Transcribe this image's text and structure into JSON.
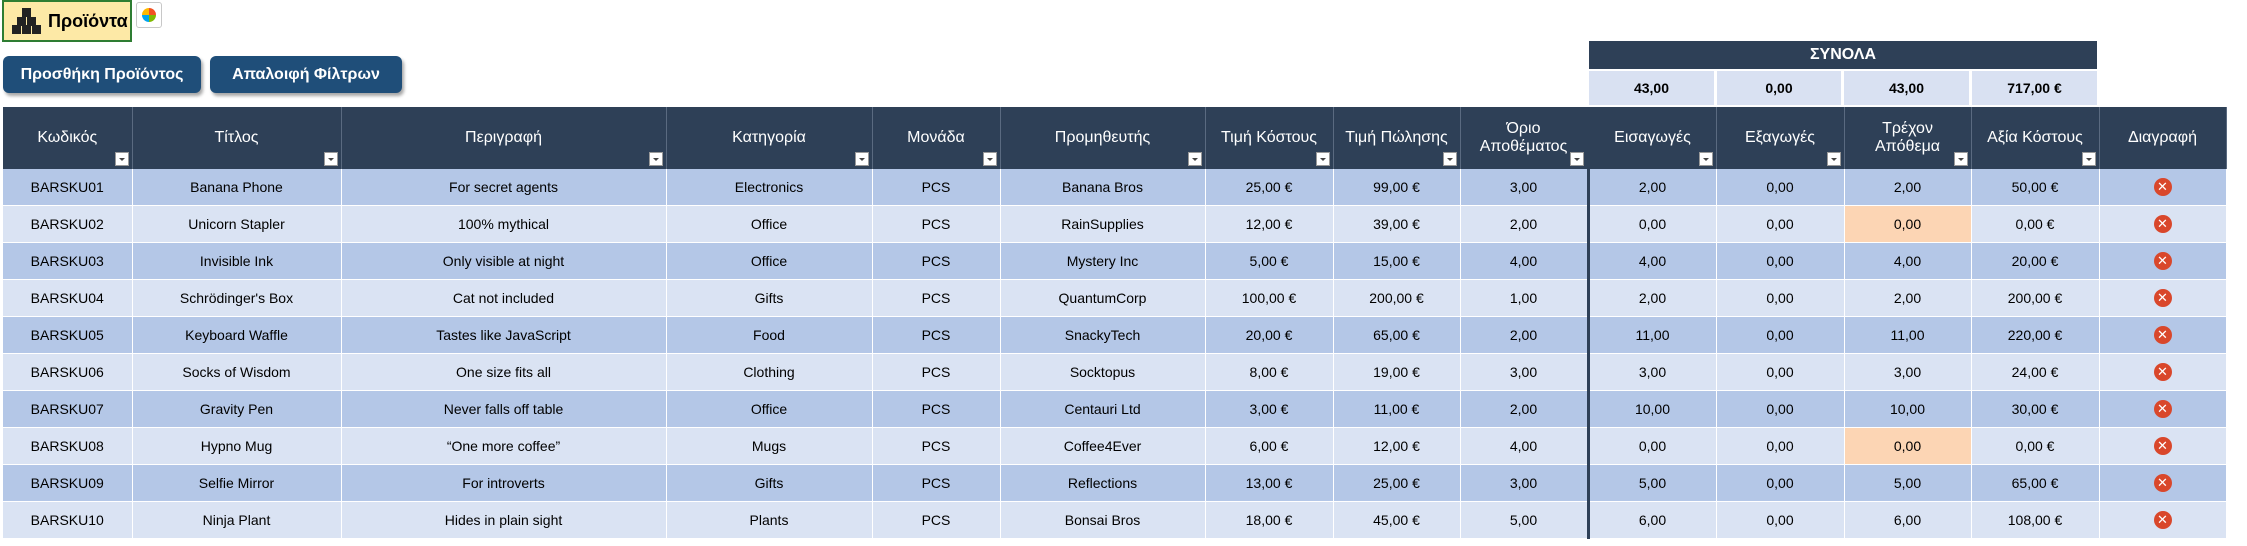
{
  "sheet_tab": {
    "label": "Προϊόντα",
    "icon": "boxes-icon"
  },
  "buttons": {
    "add": "Προσθήκη Προϊόντος",
    "clear": "Απαλοιφή Φίλτρων"
  },
  "totals": {
    "title": "ΣΥΝΟΛΑ",
    "imports": "43,00",
    "exports": "0,00",
    "stock": "43,00",
    "cost_value": "717,00 €"
  },
  "columns": [
    "Κωδικός",
    "Τίτλος",
    "Περιγραφή",
    "Κατηγορία",
    "Μονάδα",
    "Προμηθευτής",
    "Τιμή Κόστους",
    "Τιμή Πώλησης",
    "Όριο Αποθέματος",
    "Εισαγωγές",
    "Εξαγωγές",
    "Τρέχον Απόθεμα",
    "Αξία Κόστους",
    "Διαγραφή"
  ],
  "rows": [
    [
      "BARSKU01",
      "Banana Phone",
      "For secret agents",
      "Electronics",
      "PCS",
      "Banana Bros",
      "25,00 €",
      "99,00 €",
      "3,00",
      "2,00",
      "0,00",
      "2,00",
      "50,00 €"
    ],
    [
      "BARSKU02",
      "Unicorn Stapler",
      "100% mythical",
      "Office",
      "PCS",
      "RainSupplies",
      "12,00 €",
      "39,00 €",
      "2,00",
      "0,00",
      "0,00",
      "0,00",
      "0,00 €"
    ],
    [
      "BARSKU03",
      "Invisible Ink",
      "Only visible at night",
      "Office",
      "PCS",
      "Mystery Inc",
      "5,00 €",
      "15,00 €",
      "4,00",
      "4,00",
      "0,00",
      "4,00",
      "20,00 €"
    ],
    [
      "BARSKU04",
      "Schrödinger's Box",
      "Cat not included",
      "Gifts",
      "PCS",
      "QuantumCorp",
      "100,00 €",
      "200,00 €",
      "1,00",
      "2,00",
      "0,00",
      "2,00",
      "200,00 €"
    ],
    [
      "BARSKU05",
      "Keyboard Waffle",
      "Tastes like JavaScript",
      "Food",
      "PCS",
      "SnackyTech",
      "20,00 €",
      "65,00 €",
      "2,00",
      "11,00",
      "0,00",
      "11,00",
      "220,00 €"
    ],
    [
      "BARSKU06",
      "Socks of Wisdom",
      "One size fits all",
      "Clothing",
      "PCS",
      "Socktopus",
      "8,00 €",
      "19,00 €",
      "3,00",
      "3,00",
      "0,00",
      "3,00",
      "24,00 €"
    ],
    [
      "BARSKU07",
      "Gravity Pen",
      "Never falls off table",
      "Office",
      "PCS",
      "Centauri Ltd",
      "3,00 €",
      "11,00 €",
      "2,00",
      "10,00",
      "0,00",
      "10,00",
      "30,00 €"
    ],
    [
      "BARSKU08",
      "Hypno Mug",
      "“One more coffee”",
      "Mugs",
      "PCS",
      "Coffee4Ever",
      "6,00 €",
      "12,00 €",
      "4,00",
      "0,00",
      "0,00",
      "0,00",
      "0,00 €"
    ],
    [
      "BARSKU09",
      "Selfie Mirror",
      "For introverts",
      "Gifts",
      "PCS",
      "Reflections",
      "13,00 €",
      "25,00 €",
      "3,00",
      "5,00",
      "0,00",
      "5,00",
      "65,00 €"
    ],
    [
      "BARSKU10",
      "Ninja Plant",
      "Hides in plain sight",
      "Plants",
      "PCS",
      "Bonsai Bros",
      "18,00 €",
      "45,00 €",
      "5,00",
      "6,00",
      "0,00",
      "6,00",
      "108,00 €"
    ]
  ],
  "delete_icon": "close-circle-icon",
  "low_stock_rows": [
    1,
    7
  ],
  "colors": {
    "header": "#2e4057",
    "row_odd": "#b4c7e7",
    "row_even": "#dae3f3",
    "low_stock": "#fcd5b4",
    "delete": "#d9472b",
    "button": "#1f4e79"
  }
}
